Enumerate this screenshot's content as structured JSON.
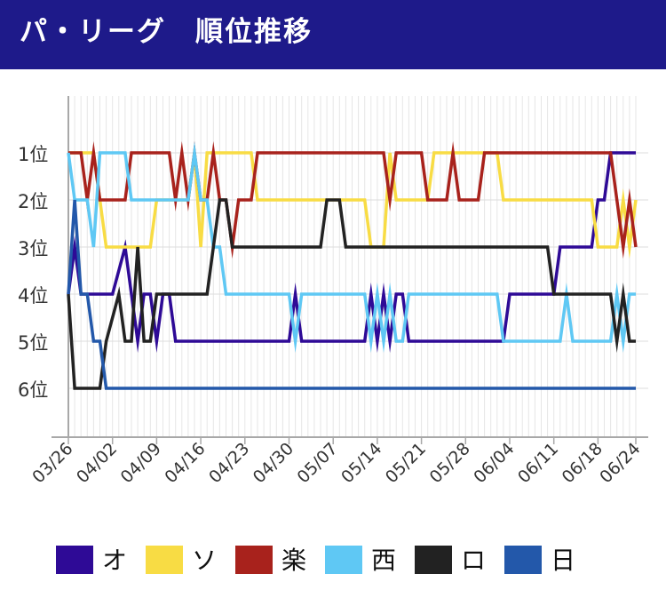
{
  "header": {
    "title": "パ・リーグ　順位推移"
  },
  "chart_data": {
    "type": "line",
    "title": "パ・リーグ　順位推移",
    "y_tick_labels": [
      "1位",
      "2位",
      "3位",
      "4位",
      "5位",
      "6位"
    ],
    "ylim": [
      0,
      7
    ],
    "y_inverted": true,
    "x_tick_labels": [
      "03/26",
      "04/02",
      "04/09",
      "04/16",
      "04/23",
      "04/30",
      "05/07",
      "05/14",
      "05/21",
      "05/28",
      "06/04",
      "06/11",
      "06/18",
      "06/24"
    ],
    "x_range": [
      "03/26",
      "06/24"
    ],
    "grid": true,
    "legend_position": "bottom",
    "series": [
      {
        "name": "オ",
        "color": "#2e0a96",
        "points": [
          [
            "03/26",
            4
          ],
          [
            "03/27",
            3
          ],
          [
            "03/28",
            4
          ],
          [
            "04/02",
            4
          ],
          [
            "04/04",
            3
          ],
          [
            "04/06",
            5
          ],
          [
            "04/07",
            4
          ],
          [
            "04/08",
            4
          ],
          [
            "04/09",
            5
          ],
          [
            "04/10",
            4
          ],
          [
            "04/11",
            4
          ],
          [
            "04/12",
            5
          ],
          [
            "04/30",
            5
          ],
          [
            "05/01",
            4
          ],
          [
            "05/02",
            5
          ],
          [
            "05/12",
            5
          ],
          [
            "05/13",
            4
          ],
          [
            "05/14",
            5
          ],
          [
            "05/15",
            4
          ],
          [
            "05/16",
            5
          ],
          [
            "05/17",
            4
          ],
          [
            "05/18",
            4
          ],
          [
            "05/19",
            5
          ],
          [
            "06/03",
            5
          ],
          [
            "06/04",
            4
          ],
          [
            "06/11",
            4
          ],
          [
            "06/12",
            3
          ],
          [
            "06/17",
            3
          ],
          [
            "06/18",
            2
          ],
          [
            "06/19",
            2
          ],
          [
            "06/20",
            1
          ],
          [
            "06/24",
            1
          ]
        ]
      },
      {
        "name": "ソ",
        "color": "#f8dc44",
        "points": [
          [
            "03/26",
            1
          ],
          [
            "03/30",
            1
          ],
          [
            "03/31",
            2
          ],
          [
            "04/01",
            3
          ],
          [
            "04/08",
            3
          ],
          [
            "04/09",
            2
          ],
          [
            "04/14",
            2
          ],
          [
            "04/15",
            1
          ],
          [
            "04/16",
            3
          ],
          [
            "04/17",
            1
          ],
          [
            "04/24",
            1
          ],
          [
            "04/25",
            2
          ],
          [
            "05/12",
            2
          ],
          [
            "05/13",
            3
          ],
          [
            "05/15",
            3
          ],
          [
            "05/16",
            1
          ],
          [
            "05/17",
            2
          ],
          [
            "05/22",
            2
          ],
          [
            "05/23",
            1
          ],
          [
            "06/02",
            1
          ],
          [
            "06/03",
            2
          ],
          [
            "06/17",
            2
          ],
          [
            "06/18",
            3
          ],
          [
            "06/21",
            3
          ],
          [
            "06/22",
            2
          ],
          [
            "06/23",
            3
          ],
          [
            "06/24",
            2
          ]
        ]
      },
      {
        "name": "楽",
        "color": "#a8221c",
        "points": [
          [
            "03/26",
            1
          ],
          [
            "03/28",
            1
          ],
          [
            "03/29",
            2
          ],
          [
            "03/30",
            1
          ],
          [
            "03/31",
            2
          ],
          [
            "04/04",
            2
          ],
          [
            "04/05",
            1
          ],
          [
            "04/10",
            1
          ],
          [
            "04/11",
            1
          ],
          [
            "04/12",
            2
          ],
          [
            "04/13",
            1
          ],
          [
            "04/14",
            2
          ],
          [
            "04/15",
            1
          ],
          [
            "04/16",
            2
          ],
          [
            "04/17",
            2
          ],
          [
            "04/18",
            1
          ],
          [
            "04/19",
            2
          ],
          [
            "04/20",
            2
          ],
          [
            "04/21",
            3
          ],
          [
            "04/22",
            2
          ],
          [
            "04/24",
            2
          ],
          [
            "04/25",
            1
          ],
          [
            "05/15",
            1
          ],
          [
            "05/16",
            2
          ],
          [
            "05/17",
            1
          ],
          [
            "05/21",
            1
          ],
          [
            "05/22",
            2
          ],
          [
            "05/25",
            2
          ],
          [
            "05/26",
            1
          ],
          [
            "05/27",
            2
          ],
          [
            "05/30",
            2
          ],
          [
            "05/31",
            1
          ],
          [
            "06/20",
            1
          ],
          [
            "06/21",
            2
          ],
          [
            "06/22",
            3
          ],
          [
            "06/23",
            2
          ],
          [
            "06/24",
            3
          ]
        ]
      },
      {
        "name": "西",
        "color": "#5fc8f4",
        "points": [
          [
            "03/26",
            1
          ],
          [
            "03/27",
            2
          ],
          [
            "03/29",
            2
          ],
          [
            "03/30",
            3
          ],
          [
            "03/31",
            1
          ],
          [
            "04/04",
            1
          ],
          [
            "04/05",
            2
          ],
          [
            "04/09",
            2
          ],
          [
            "04/10",
            2
          ],
          [
            "04/14",
            2
          ],
          [
            "04/15",
            1
          ],
          [
            "04/16",
            2
          ],
          [
            "04/17",
            2
          ],
          [
            "04/18",
            3
          ],
          [
            "04/19",
            3
          ],
          [
            "04/20",
            4
          ],
          [
            "04/30",
            4
          ],
          [
            "05/01",
            5
          ],
          [
            "05/02",
            4
          ],
          [
            "05/12",
            4
          ],
          [
            "05/13",
            5
          ],
          [
            "05/14",
            4
          ],
          [
            "05/15",
            5
          ],
          [
            "05/16",
            4
          ],
          [
            "05/17",
            5
          ],
          [
            "05/18",
            5
          ],
          [
            "05/19",
            4
          ],
          [
            "06/02",
            4
          ],
          [
            "06/03",
            5
          ],
          [
            "06/12",
            5
          ],
          [
            "06/13",
            4
          ],
          [
            "06/14",
            5
          ],
          [
            "06/20",
            5
          ],
          [
            "06/21",
            4
          ],
          [
            "06/22",
            5
          ],
          [
            "06/23",
            4
          ],
          [
            "06/24",
            4
          ]
        ]
      },
      {
        "name": "ロ",
        "color": "#222222",
        "points": [
          [
            "03/26",
            4
          ],
          [
            "03/27",
            6
          ],
          [
            "03/31",
            6
          ],
          [
            "04/01",
            5
          ],
          [
            "04/03",
            4
          ],
          [
            "04/04",
            5
          ],
          [
            "04/05",
            5
          ],
          [
            "04/06",
            3
          ],
          [
            "04/07",
            5
          ],
          [
            "04/08",
            5
          ],
          [
            "04/09",
            4
          ],
          [
            "04/16",
            4
          ],
          [
            "04/17",
            4
          ],
          [
            "04/18",
            3
          ],
          [
            "04/19",
            2
          ],
          [
            "04/20",
            2
          ],
          [
            "04/21",
            3
          ],
          [
            "05/05",
            3
          ],
          [
            "05/06",
            2
          ],
          [
            "05/08",
            2
          ],
          [
            "05/09",
            3
          ],
          [
            "06/10",
            3
          ],
          [
            "06/11",
            4
          ],
          [
            "06/20",
            4
          ],
          [
            "06/21",
            5
          ],
          [
            "06/22",
            4
          ],
          [
            "06/23",
            5
          ],
          [
            "06/24",
            5
          ]
        ]
      },
      {
        "name": "日",
        "color": "#2358aa",
        "points": [
          [
            "03/26",
            4
          ],
          [
            "03/27",
            2
          ],
          [
            "03/28",
            4
          ],
          [
            "03/29",
            4
          ],
          [
            "03/30",
            5
          ],
          [
            "03/31",
            5
          ],
          [
            "04/01",
            6
          ],
          [
            "06/24",
            6
          ]
        ]
      }
    ]
  }
}
